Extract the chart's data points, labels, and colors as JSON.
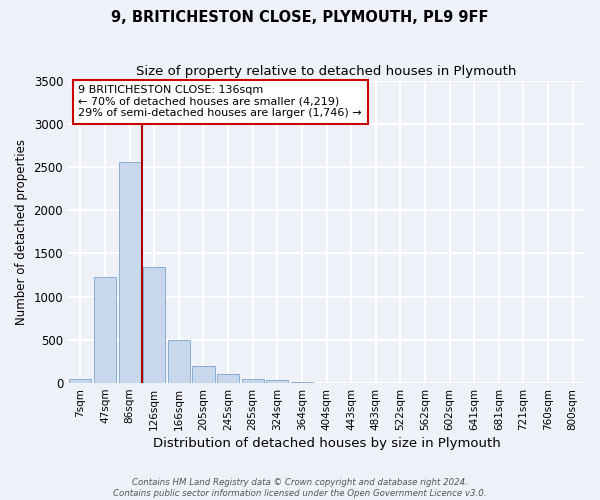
{
  "title1": "9, BRITICHESTON CLOSE, PLYMOUTH, PL9 9FF",
  "title2": "Size of property relative to detached houses in Plymouth",
  "xlabel": "Distribution of detached houses by size in Plymouth",
  "ylabel": "Number of detached properties",
  "bar_labels": [
    "7sqm",
    "47sqm",
    "86sqm",
    "126sqm",
    "166sqm",
    "205sqm",
    "245sqm",
    "285sqm",
    "324sqm",
    "364sqm",
    "404sqm",
    "443sqm",
    "483sqm",
    "522sqm",
    "562sqm",
    "602sqm",
    "641sqm",
    "681sqm",
    "721sqm",
    "760sqm",
    "800sqm"
  ],
  "bar_values": [
    50,
    1230,
    2560,
    1340,
    500,
    200,
    110,
    50,
    30,
    10,
    5,
    3,
    2,
    1,
    0,
    0,
    0,
    0,
    0,
    0,
    0
  ],
  "bar_color": "#c8d8ec",
  "bar_edge_color": "#8aafd0",
  "property_line_color": "#aa0000",
  "property_line_x": 2.5,
  "annotation_text": "9 BRITICHESTON CLOSE: 136sqm\n← 70% of detached houses are smaller (4,219)\n29% of semi-detached houses are larger (1,746) →",
  "annotation_box_color": "#ffffff",
  "annotation_box_edge_color": "#cc0000",
  "ylim": [
    0,
    3500
  ],
  "yticks": [
    0,
    500,
    1000,
    1500,
    2000,
    2500,
    3000,
    3500
  ],
  "footer1": "Contains HM Land Registry data © Crown copyright and database right 2024.",
  "footer2": "Contains public sector information licensed under the Open Government Licence v3.0.",
  "bg_color": "#eef2f8",
  "grid_color": "#ffffff"
}
